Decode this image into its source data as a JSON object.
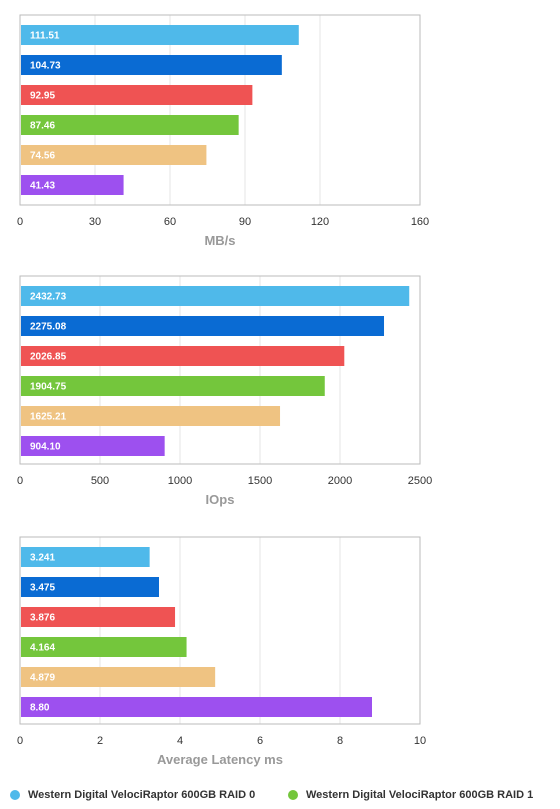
{
  "chart_data": [
    {
      "type": "bar",
      "orientation": "horizontal",
      "xlabel": "MB/s",
      "xlim": [
        0,
        160
      ],
      "xticks": [
        0,
        30,
        60,
        90,
        120,
        160
      ],
      "grid": true,
      "values": [
        111.51,
        104.73,
        92.95,
        87.46,
        74.56,
        41.43
      ],
      "labels": [
        "111.51",
        "104.73",
        "92.95",
        "87.46",
        "74.56",
        "41.43"
      ]
    },
    {
      "type": "bar",
      "orientation": "horizontal",
      "xlabel": "IOps",
      "xlim": [
        0,
        2500
      ],
      "xticks": [
        0,
        500,
        1000,
        1500,
        2000,
        2500
      ],
      "grid": true,
      "values": [
        2432.73,
        2275.08,
        2026.85,
        1904.75,
        1625.21,
        904.1
      ],
      "labels": [
        "2432.73",
        "2275.08",
        "2026.85",
        "1904.75",
        "1625.21",
        "904.10"
      ]
    },
    {
      "type": "bar",
      "orientation": "horizontal",
      "xlabel": "Average Latency ms",
      "xlim": [
        0,
        10
      ],
      "xticks": [
        0,
        2,
        4,
        6,
        8,
        10
      ],
      "grid": true,
      "values": [
        3.241,
        3.475,
        3.876,
        4.164,
        4.879,
        8.8
      ],
      "labels": [
        "3.241",
        "3.475",
        "3.876",
        "4.164",
        "4.879",
        "8.80"
      ]
    }
  ],
  "colors": [
    "#4fb9ea",
    "#0a6bd3",
    "#ef5353",
    "#74c63c",
    "#efc382",
    "#9d50ef"
  ],
  "legend": {
    "items": [
      {
        "name": "Western Digital VelociRaptor 600GB RAID 0",
        "color": "#4fb9ea"
      },
      {
        "name": "Western Digital VelociRaptor 600GB RAID 1",
        "color": "#74c63c"
      }
    ]
  }
}
